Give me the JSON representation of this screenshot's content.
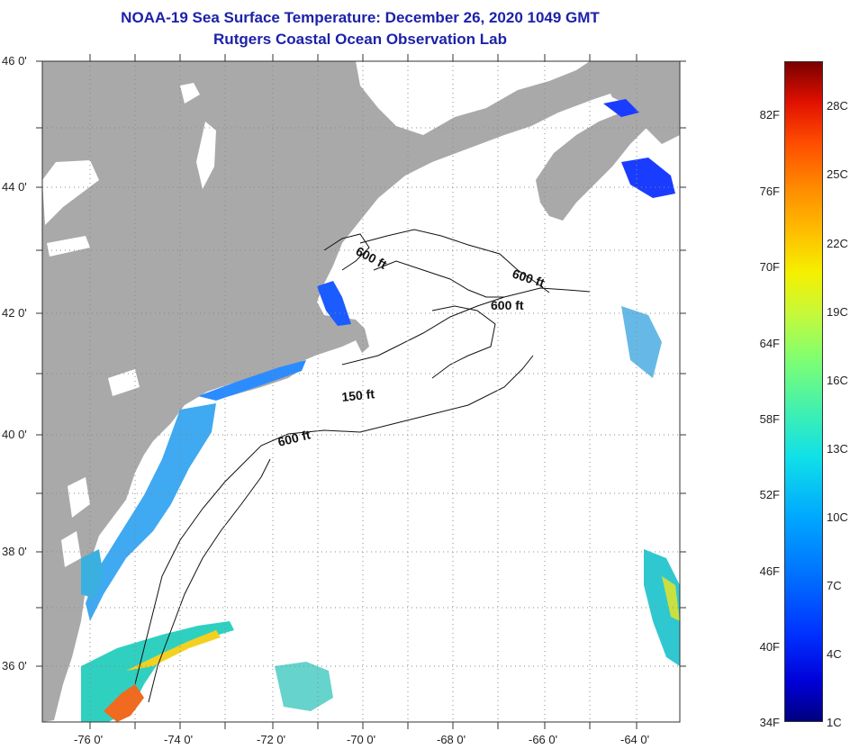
{
  "title": {
    "line1": "NOAA-19 Sea Surface Temperature:  December 26, 2020 1049 GMT",
    "line2": "Rutgers Coastal Ocean Observation Lab"
  },
  "map": {
    "latitude_labels": [
      "46 0'",
      "44 0'",
      "42 0'",
      "40 0'",
      "38 0'",
      "36 0'"
    ],
    "longitude_labels": [
      "-76 0'",
      "-74 0'",
      "-72 0'",
      "-70 0'",
      "-68 0'",
      "-66 0'",
      "-64 0'"
    ],
    "contour_labels": [
      "600 ft",
      "600 ft",
      "600 ft",
      "150 ft",
      "600 ft"
    ],
    "colors": {
      "land": "#a9a9a9",
      "ocean": "#ffffff",
      "grid": "#888888"
    }
  },
  "colorbar": {
    "fahrenheit_labels": [
      "82F",
      "76F",
      "70F",
      "64F",
      "58F",
      "52F",
      "46F",
      "40F",
      "34F"
    ],
    "celsius_labels": [
      "28C",
      "25C",
      "22C",
      "19C",
      "16C",
      "13C",
      "10C",
      "7C",
      "4C",
      "1C"
    ]
  }
}
